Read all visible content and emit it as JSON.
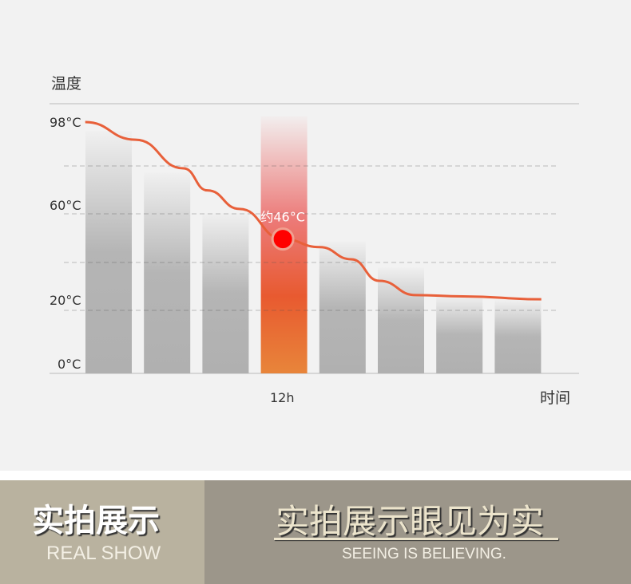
{
  "chart_data": {
    "type": "bar",
    "ylabel": "温度",
    "xlabel": "时间",
    "y_ticks": [
      "98°C",
      "60°C",
      "20°C",
      "0°C"
    ],
    "x_ticks": [
      {
        "index": 3,
        "label": "12h"
      }
    ],
    "values": [
      94,
      75,
      57,
      98,
      45,
      34,
      22,
      18
    ],
    "highlight_index": 3,
    "curve": [
      [
        -0.4,
        98
      ],
      [
        0.46,
        90
      ],
      [
        1.28,
        77
      ],
      [
        1.69,
        67
      ],
      [
        2.24,
        58.7
      ],
      [
        2.98,
        46
      ],
      [
        3.61,
        42.6
      ],
      [
        4.15,
        37.5
      ],
      [
        4.63,
        28.4
      ],
      [
        5.25,
        22.4
      ],
      [
        6.06,
        19
      ],
      [
        7.4,
        18.2
      ]
    ],
    "annotation": {
      "label": "约46°C",
      "index": 2.98,
      "value": 46
    },
    "grid": true,
    "colors": {
      "curve": "#e8603a",
      "bar": "#b3b3b3",
      "highlight_top": "#f2d8dc",
      "highlight_mid": "#e85a30",
      "highlight_bottom": "#e8843a",
      "marker": "#ff0000"
    }
  },
  "footer": {
    "left_title": "实拍展示",
    "left_sub": "REAL SHOW",
    "right_title": "实拍展示眼见为实",
    "right_sub": "SEEING IS BELIEVING."
  }
}
